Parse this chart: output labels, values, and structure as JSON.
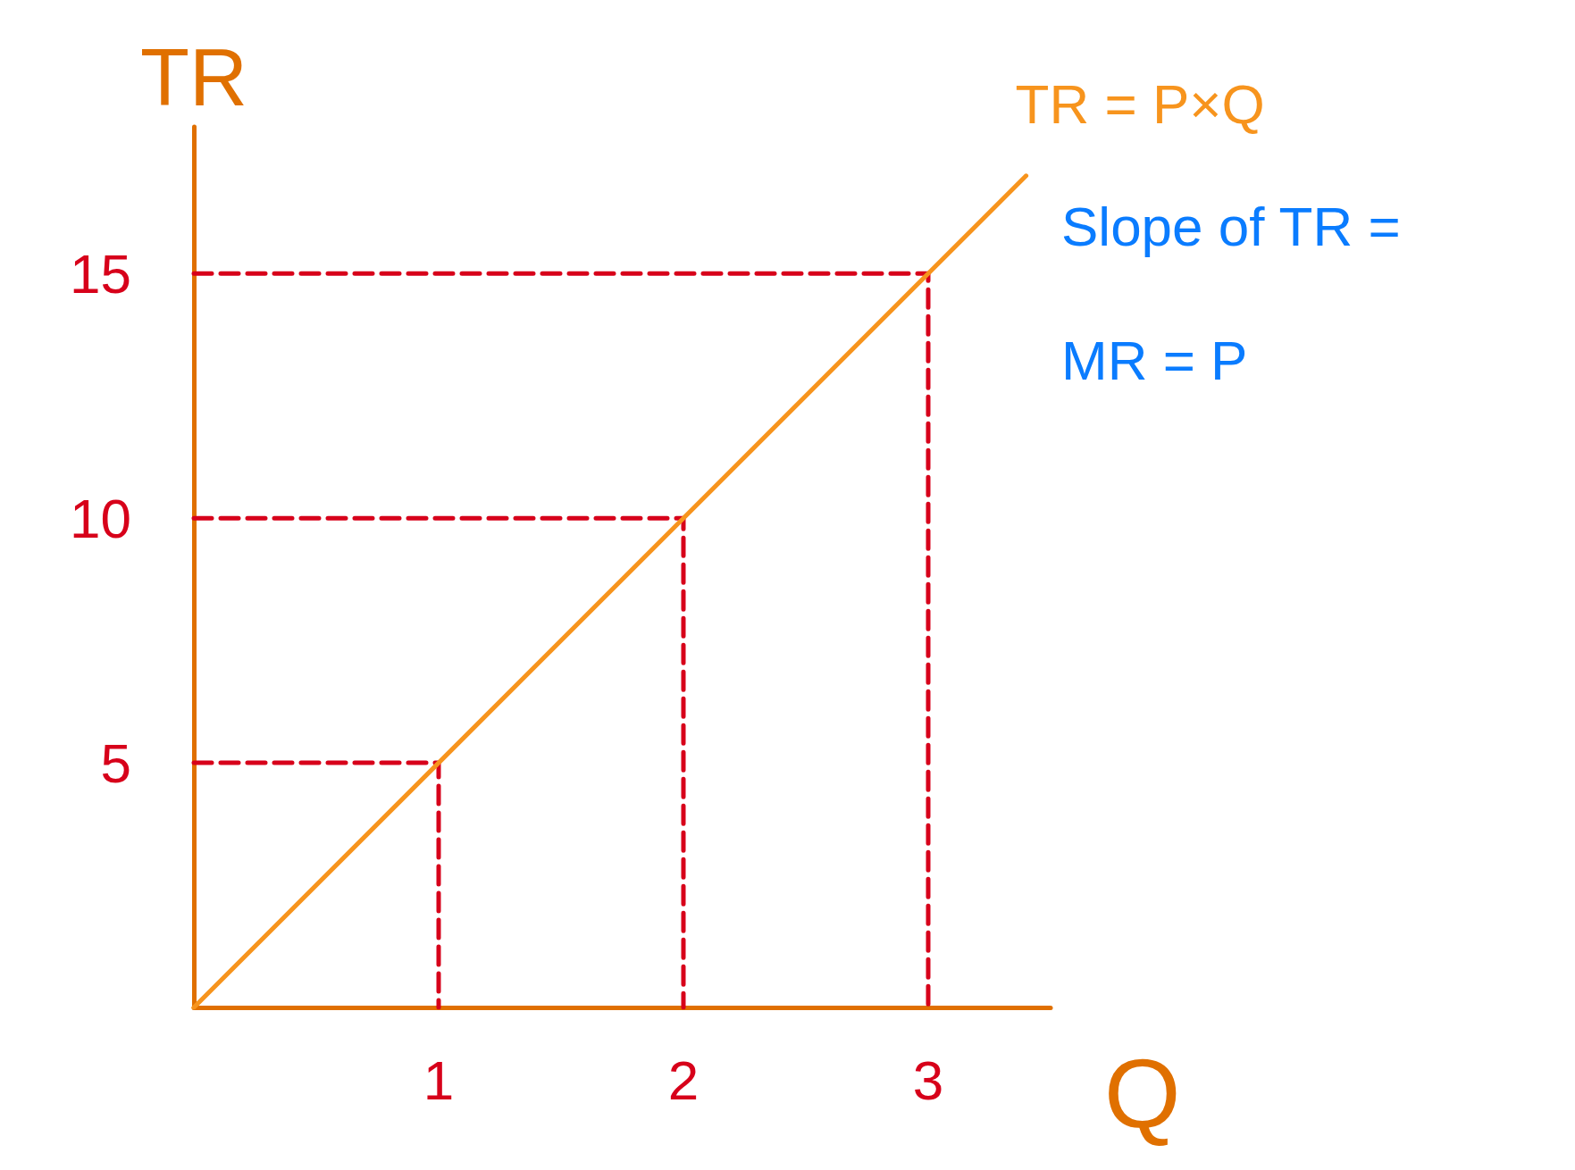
{
  "chart_data": {
    "type": "line",
    "xlabel": "Q",
    "ylabel": "TR",
    "xlim": [
      0,
      3.5
    ],
    "ylim": [
      0,
      18
    ],
    "xticks": [
      1,
      2,
      3
    ],
    "yticks": [
      5,
      10,
      15
    ],
    "grid": false,
    "legend": false,
    "marker": "none",
    "annotations": [
      "Slope of TR = MR = P"
    ],
    "series": [
      {
        "name": "TR = P×Q",
        "color": "#f7941d",
        "x": [
          0,
          3.4
        ],
        "values": [
          0,
          17
        ],
        "line_style": "solid"
      },
      {
        "color": "#d7001a",
        "x": [
          0,
          1,
          1
        ],
        "values": [
          5,
          5,
          0
        ],
        "line_style": "dashed"
      },
      {
        "color": "#d7001a",
        "x": [
          0,
          2,
          2
        ],
        "values": [
          10,
          10,
          0
        ],
        "line_style": "dashed"
      },
      {
        "color": "#d7001a",
        "x": [
          0,
          3,
          3
        ],
        "values": [
          15,
          15,
          0
        ],
        "line_style": "dashed"
      }
    ]
  }
}
